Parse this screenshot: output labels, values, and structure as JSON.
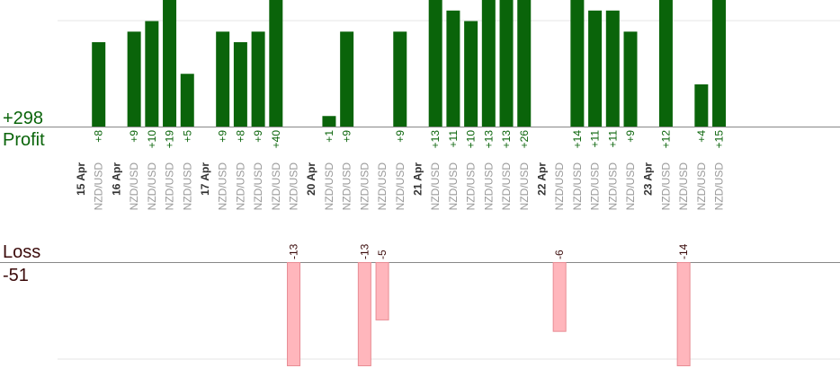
{
  "chart_data": {
    "type": "bar",
    "profit_total_label": "+298",
    "profit_label": "Profit",
    "loss_label": "Loss",
    "loss_total_label": "-51",
    "colors": {
      "profit_bar": "#0a640a",
      "profit_text": "#0a640a",
      "loss_bar": "#ffb6bc",
      "loss_bar_edge": "#e88c94",
      "loss_text": "#3a0a0a",
      "date_text": "#333333",
      "symbol_text": "#999999",
      "axis": "#888888",
      "grid": "#e6e6e6"
    },
    "slots": [
      {
        "date": "15 Apr"
      },
      {
        "symbol": "NZD/USD",
        "profit": 8
      },
      {
        "date": "16 Apr"
      },
      {
        "symbol": "NZD/USD",
        "profit": 9
      },
      {
        "symbol": "NZD/USD",
        "profit": 10
      },
      {
        "symbol": "NZD/USD",
        "profit": 19
      },
      {
        "symbol": "NZD/USD",
        "profit": 5
      },
      {
        "date": "17 Apr"
      },
      {
        "symbol": "NZD/USD",
        "profit": 9
      },
      {
        "symbol": "NZD/USD",
        "profit": 8
      },
      {
        "symbol": "NZD/USD",
        "profit": 9
      },
      {
        "symbol": "NZD/USD",
        "profit": 40
      },
      {
        "symbol": "NZD/USD",
        "loss": 13
      },
      {
        "date": "20 Apr"
      },
      {
        "symbol": "NZD/USD",
        "profit": 1
      },
      {
        "symbol": "NZD/USD",
        "profit": 9
      },
      {
        "symbol": "NZD/USD",
        "loss": 13
      },
      {
        "symbol": "NZD/USD",
        "loss": 5
      },
      {
        "symbol": "NZD/USD",
        "profit": 9
      },
      {
        "date": "21 Apr"
      },
      {
        "symbol": "NZD/USD",
        "profit": 13
      },
      {
        "symbol": "NZD/USD",
        "profit": 11
      },
      {
        "symbol": "NZD/USD",
        "profit": 10
      },
      {
        "symbol": "NZD/USD",
        "profit": 13
      },
      {
        "symbol": "NZD/USD",
        "profit": 13
      },
      {
        "symbol": "NZD/USD",
        "profit": 26
      },
      {
        "date": "22 Apr"
      },
      {
        "symbol": "NZD/USD",
        "loss": 6
      },
      {
        "symbol": "NZD/USD",
        "profit": 14
      },
      {
        "symbol": "NZD/USD",
        "profit": 11
      },
      {
        "symbol": "NZD/USD",
        "profit": 11
      },
      {
        "symbol": "NZD/USD",
        "profit": 9
      },
      {
        "date": "23 Apr"
      },
      {
        "symbol": "NZD/USD",
        "profit": 12
      },
      {
        "symbol": "NZD/USD",
        "loss": 14
      },
      {
        "symbol": "NZD/USD",
        "profit": 4
      },
      {
        "symbol": "NZD/USD",
        "profit": 15
      }
    ],
    "profit_axis_visible_max": 12,
    "loss_axis_visible_max": 9
  }
}
